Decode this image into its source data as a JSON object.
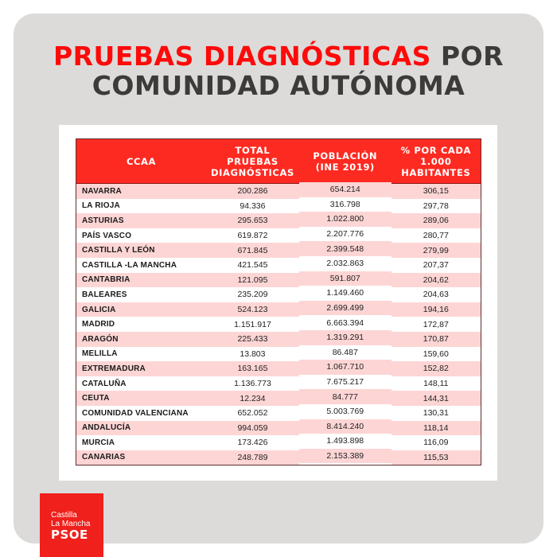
{
  "title": {
    "line1_red": "PRUEBAS DIAGNÓSTICAS",
    "line1_dark": " POR",
    "line2": "COMUNIDAD AUTÓNOMA"
  },
  "table": {
    "headers": [
      "CCAA",
      "TOTAL PRUEBAS DIAGNÓSTICAS",
      "POBLACIÓN (INE 2019)",
      "% POR CADA 1.000 HABITANTES"
    ],
    "header_lines": {
      "col0": [
        "CCAA"
      ],
      "col1": [
        "TOTAL",
        "PRUEBAS",
        "DIAGNÓSTICAS"
      ],
      "col2": [
        "POBLACIÓN",
        "(INE 2019)"
      ],
      "col3": [
        "% POR CADA",
        "1.000",
        "HABITANTES"
      ]
    },
    "rows": [
      {
        "ccaa": "NAVARRA",
        "total": "200.286",
        "poblacion": "654.214",
        "ratio": "306,15"
      },
      {
        "ccaa": "LA RIOJA",
        "total": "94.336",
        "poblacion": "316.798",
        "ratio": "297,78"
      },
      {
        "ccaa": "ASTURIAS",
        "total": "295.653",
        "poblacion": "1.022.800",
        "ratio": "289,06"
      },
      {
        "ccaa": "PAÍS VASCO",
        "total": "619.872",
        "poblacion": "2.207.776",
        "ratio": "280,77"
      },
      {
        "ccaa": "CASTILLA Y LEÓN",
        "total": "671.845",
        "poblacion": "2.399.548",
        "ratio": "279,99"
      },
      {
        "ccaa": "CASTILLA -LA MANCHA",
        "total": "421.545",
        "poblacion": "2.032.863",
        "ratio": "207,37"
      },
      {
        "ccaa": "CANTABRIA",
        "total": "121.095",
        "poblacion": "591.807",
        "ratio": "204,62"
      },
      {
        "ccaa": "BALEARES",
        "total": "235.209",
        "poblacion": "1.149.460",
        "ratio": "204,63"
      },
      {
        "ccaa": "GALICIA",
        "total": "524.123",
        "poblacion": "2.699.499",
        "ratio": "194,16"
      },
      {
        "ccaa": "MADRID",
        "total": "1.151.917",
        "poblacion": "6.663.394",
        "ratio": "172,87"
      },
      {
        "ccaa": "ARAGÓN",
        "total": "225.433",
        "poblacion": "1.319.291",
        "ratio": "170,87"
      },
      {
        "ccaa": "MELILLA",
        "total": "13.803",
        "poblacion": "86.487",
        "ratio": "159,60"
      },
      {
        "ccaa": "EXTREMADURA",
        "total": "163.165",
        "poblacion": "1.067.710",
        "ratio": "152,82"
      },
      {
        "ccaa": "CATALUÑA",
        "total": "1.136.773",
        "poblacion": "7.675.217",
        "ratio": "148,11"
      },
      {
        "ccaa": "CEUTA",
        "total": "12.234",
        "poblacion": "84.777",
        "ratio": "144,31"
      },
      {
        "ccaa": "COMUNIDAD VALENCIANA",
        "total": "652.052",
        "poblacion": "5.003.769",
        "ratio": "130,31"
      },
      {
        "ccaa": "ANDALUCÍA",
        "total": "994.059",
        "poblacion": "8.414.240",
        "ratio": "118,14"
      },
      {
        "ccaa": "MURCIA",
        "total": "173.426",
        "poblacion": "1.493.898",
        "ratio": "116,09"
      },
      {
        "ccaa": "CANARIAS",
        "total": "248.789",
        "poblacion": "2.153.389",
        "ratio": "115,53"
      }
    ]
  },
  "logo": {
    "line1": "Castilla",
    "line2": "La Mancha",
    "line3": "PSOE"
  },
  "colors": {
    "title_red": "#fe0a0a",
    "title_dark": "#3d3a3a",
    "header_red": "#fd2a21",
    "row_pink": "#fdd5d5",
    "panel_gray": "#dcdbd9",
    "logo_red": "#f0201c"
  }
}
